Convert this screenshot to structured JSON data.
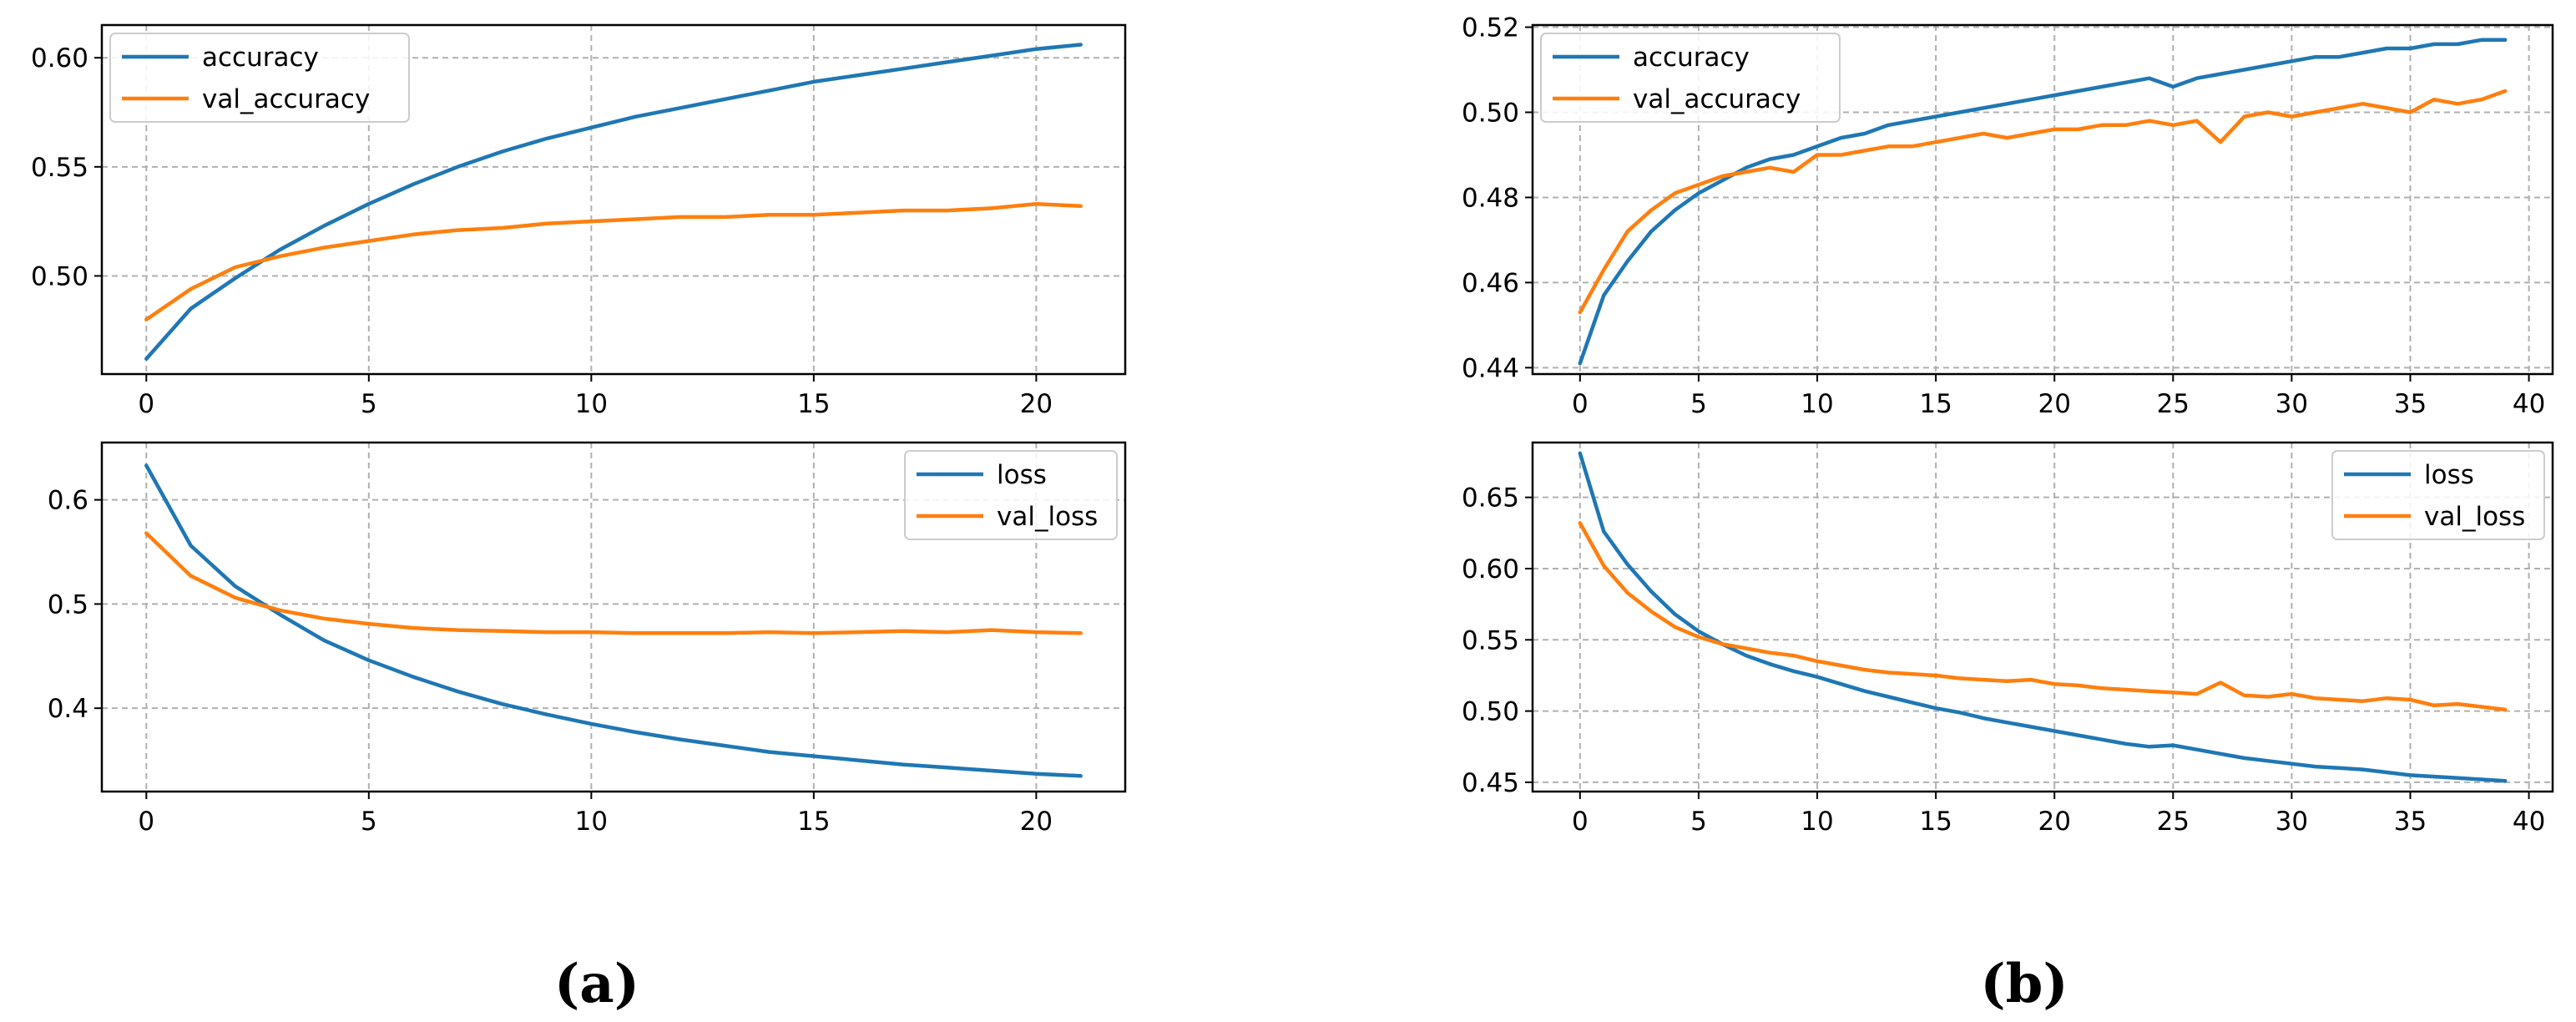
{
  "colors": {
    "blue": "#1f77b4",
    "orange": "#ff7f0e",
    "grid": "#b0b0b0"
  },
  "panel_labels": {
    "a": "(a)",
    "b": "(b)"
  },
  "chart_data": [
    {
      "id": "a-accuracy",
      "type": "line",
      "xlim": [
        -1,
        22
      ],
      "ylim": [
        0.455,
        0.615
      ],
      "xticks": [
        0,
        5,
        10,
        15,
        20
      ],
      "yticks": [
        0.5,
        0.55,
        0.6
      ],
      "ytick_decimals": 2,
      "grid": true,
      "legend_position": "top-left",
      "series": [
        {
          "name": "accuracy",
          "color": "blue",
          "x": [
            0,
            1,
            2,
            3,
            4,
            5,
            6,
            7,
            8,
            9,
            10,
            11,
            12,
            13,
            14,
            15,
            16,
            17,
            18,
            19,
            20,
            21
          ],
          "y": [
            0.462,
            0.485,
            0.499,
            0.512,
            0.523,
            0.533,
            0.542,
            0.55,
            0.557,
            0.563,
            0.568,
            0.573,
            0.577,
            0.581,
            0.585,
            0.589,
            0.592,
            0.595,
            0.598,
            0.601,
            0.604,
            0.606
          ]
        },
        {
          "name": "val_accuracy",
          "color": "orange",
          "x": [
            0,
            1,
            2,
            3,
            4,
            5,
            6,
            7,
            8,
            9,
            10,
            11,
            12,
            13,
            14,
            15,
            16,
            17,
            18,
            19,
            20,
            21
          ],
          "y": [
            0.48,
            0.494,
            0.504,
            0.509,
            0.513,
            0.516,
            0.519,
            0.521,
            0.522,
            0.524,
            0.525,
            0.526,
            0.527,
            0.527,
            0.528,
            0.528,
            0.529,
            0.53,
            0.53,
            0.531,
            0.533,
            0.532
          ]
        }
      ]
    },
    {
      "id": "a-loss",
      "type": "line",
      "xlim": [
        -1,
        22
      ],
      "ylim": [
        0.32,
        0.655
      ],
      "xticks": [
        0,
        5,
        10,
        15,
        20
      ],
      "yticks": [
        0.4,
        0.5,
        0.6
      ],
      "ytick_decimals": 1,
      "grid": true,
      "legend_position": "top-right",
      "series": [
        {
          "name": "loss",
          "color": "blue",
          "x": [
            0,
            1,
            2,
            3,
            4,
            5,
            6,
            7,
            8,
            9,
            10,
            11,
            12,
            13,
            14,
            15,
            16,
            17,
            18,
            19,
            20,
            21
          ],
          "y": [
            0.633,
            0.556,
            0.517,
            0.49,
            0.465,
            0.446,
            0.43,
            0.416,
            0.404,
            0.394,
            0.385,
            0.377,
            0.37,
            0.364,
            0.358,
            0.354,
            0.35,
            0.346,
            0.343,
            0.34,
            0.337,
            0.335
          ]
        },
        {
          "name": "val_loss",
          "color": "orange",
          "x": [
            0,
            1,
            2,
            3,
            4,
            5,
            6,
            7,
            8,
            9,
            10,
            11,
            12,
            13,
            14,
            15,
            16,
            17,
            18,
            19,
            20,
            21
          ],
          "y": [
            0.568,
            0.527,
            0.506,
            0.494,
            0.486,
            0.481,
            0.477,
            0.475,
            0.474,
            0.473,
            0.473,
            0.472,
            0.472,
            0.472,
            0.473,
            0.472,
            0.473,
            0.474,
            0.473,
            0.475,
            0.473,
            0.472
          ]
        }
      ]
    },
    {
      "id": "b-accuracy",
      "type": "line",
      "xlim": [
        -2,
        41
      ],
      "ylim": [
        0.4385,
        0.5205
      ],
      "xticks": [
        0,
        5,
        10,
        15,
        20,
        25,
        30,
        35,
        40
      ],
      "yticks": [
        0.44,
        0.46,
        0.48,
        0.5,
        0.52
      ],
      "ytick_decimals": 2,
      "grid": true,
      "legend_position": "top-left",
      "series": [
        {
          "name": "accuracy",
          "color": "blue",
          "x": [
            0,
            1,
            2,
            3,
            4,
            5,
            6,
            7,
            8,
            9,
            10,
            11,
            12,
            13,
            14,
            15,
            16,
            17,
            18,
            19,
            20,
            21,
            22,
            23,
            24,
            25,
            26,
            27,
            28,
            29,
            30,
            31,
            32,
            33,
            34,
            35,
            36,
            37,
            38,
            39
          ],
          "y": [
            0.441,
            0.457,
            0.465,
            0.472,
            0.477,
            0.481,
            0.484,
            0.487,
            0.489,
            0.49,
            0.492,
            0.494,
            0.495,
            0.497,
            0.498,
            0.499,
            0.5,
            0.501,
            0.502,
            0.503,
            0.504,
            0.505,
            0.506,
            0.507,
            0.508,
            0.506,
            0.508,
            0.509,
            0.51,
            0.511,
            0.512,
            0.513,
            0.513,
            0.514,
            0.515,
            0.515,
            0.516,
            0.516,
            0.517,
            0.517
          ]
        },
        {
          "name": "val_accuracy",
          "color": "orange",
          "x": [
            0,
            1,
            2,
            3,
            4,
            5,
            6,
            7,
            8,
            9,
            10,
            11,
            12,
            13,
            14,
            15,
            16,
            17,
            18,
            19,
            20,
            21,
            22,
            23,
            24,
            25,
            26,
            27,
            28,
            29,
            30,
            31,
            32,
            33,
            34,
            35,
            36,
            37,
            38,
            39
          ],
          "y": [
            0.453,
            0.463,
            0.472,
            0.477,
            0.481,
            0.483,
            0.485,
            0.486,
            0.487,
            0.486,
            0.49,
            0.49,
            0.491,
            0.492,
            0.492,
            0.493,
            0.494,
            0.495,
            0.494,
            0.495,
            0.496,
            0.496,
            0.497,
            0.497,
            0.498,
            0.497,
            0.498,
            0.493,
            0.499,
            0.5,
            0.499,
            0.5,
            0.501,
            0.502,
            0.501,
            0.5,
            0.503,
            0.502,
            0.503,
            0.505
          ]
        }
      ]
    },
    {
      "id": "b-loss",
      "type": "line",
      "xlim": [
        -2,
        41
      ],
      "ylim": [
        0.4435,
        0.6885
      ],
      "xticks": [
        0,
        5,
        10,
        15,
        20,
        25,
        30,
        35,
        40
      ],
      "yticks": [
        0.45,
        0.5,
        0.55,
        0.6,
        0.65
      ],
      "ytick_decimals": 2,
      "grid": true,
      "legend_position": "top-right",
      "series": [
        {
          "name": "loss",
          "color": "blue",
          "x": [
            0,
            1,
            2,
            3,
            4,
            5,
            6,
            7,
            8,
            9,
            10,
            11,
            12,
            13,
            14,
            15,
            16,
            17,
            18,
            19,
            20,
            21,
            22,
            23,
            24,
            25,
            26,
            27,
            28,
            29,
            30,
            31,
            32,
            33,
            34,
            35,
            36,
            37,
            38,
            39
          ],
          "y": [
            0.681,
            0.626,
            0.603,
            0.584,
            0.568,
            0.556,
            0.547,
            0.539,
            0.533,
            0.528,
            0.524,
            0.519,
            0.514,
            0.51,
            0.506,
            0.502,
            0.499,
            0.495,
            0.492,
            0.489,
            0.486,
            0.483,
            0.48,
            0.477,
            0.475,
            0.476,
            0.473,
            0.47,
            0.467,
            0.465,
            0.463,
            0.461,
            0.46,
            0.459,
            0.457,
            0.455,
            0.454,
            0.453,
            0.452,
            0.451
          ]
        },
        {
          "name": "val_loss",
          "color": "orange",
          "x": [
            0,
            1,
            2,
            3,
            4,
            5,
            6,
            7,
            8,
            9,
            10,
            11,
            12,
            13,
            14,
            15,
            16,
            17,
            18,
            19,
            20,
            21,
            22,
            23,
            24,
            25,
            26,
            27,
            28,
            29,
            30,
            31,
            32,
            33,
            34,
            35,
            36,
            37,
            38,
            39
          ],
          "y": [
            0.632,
            0.602,
            0.583,
            0.57,
            0.559,
            0.552,
            0.547,
            0.544,
            0.541,
            0.539,
            0.535,
            0.532,
            0.529,
            0.527,
            0.526,
            0.525,
            0.523,
            0.522,
            0.521,
            0.522,
            0.519,
            0.518,
            0.516,
            0.515,
            0.514,
            0.513,
            0.512,
            0.52,
            0.511,
            0.51,
            0.512,
            0.509,
            0.508,
            0.507,
            0.509,
            0.508,
            0.504,
            0.505,
            0.503,
            0.501
          ]
        }
      ]
    }
  ]
}
